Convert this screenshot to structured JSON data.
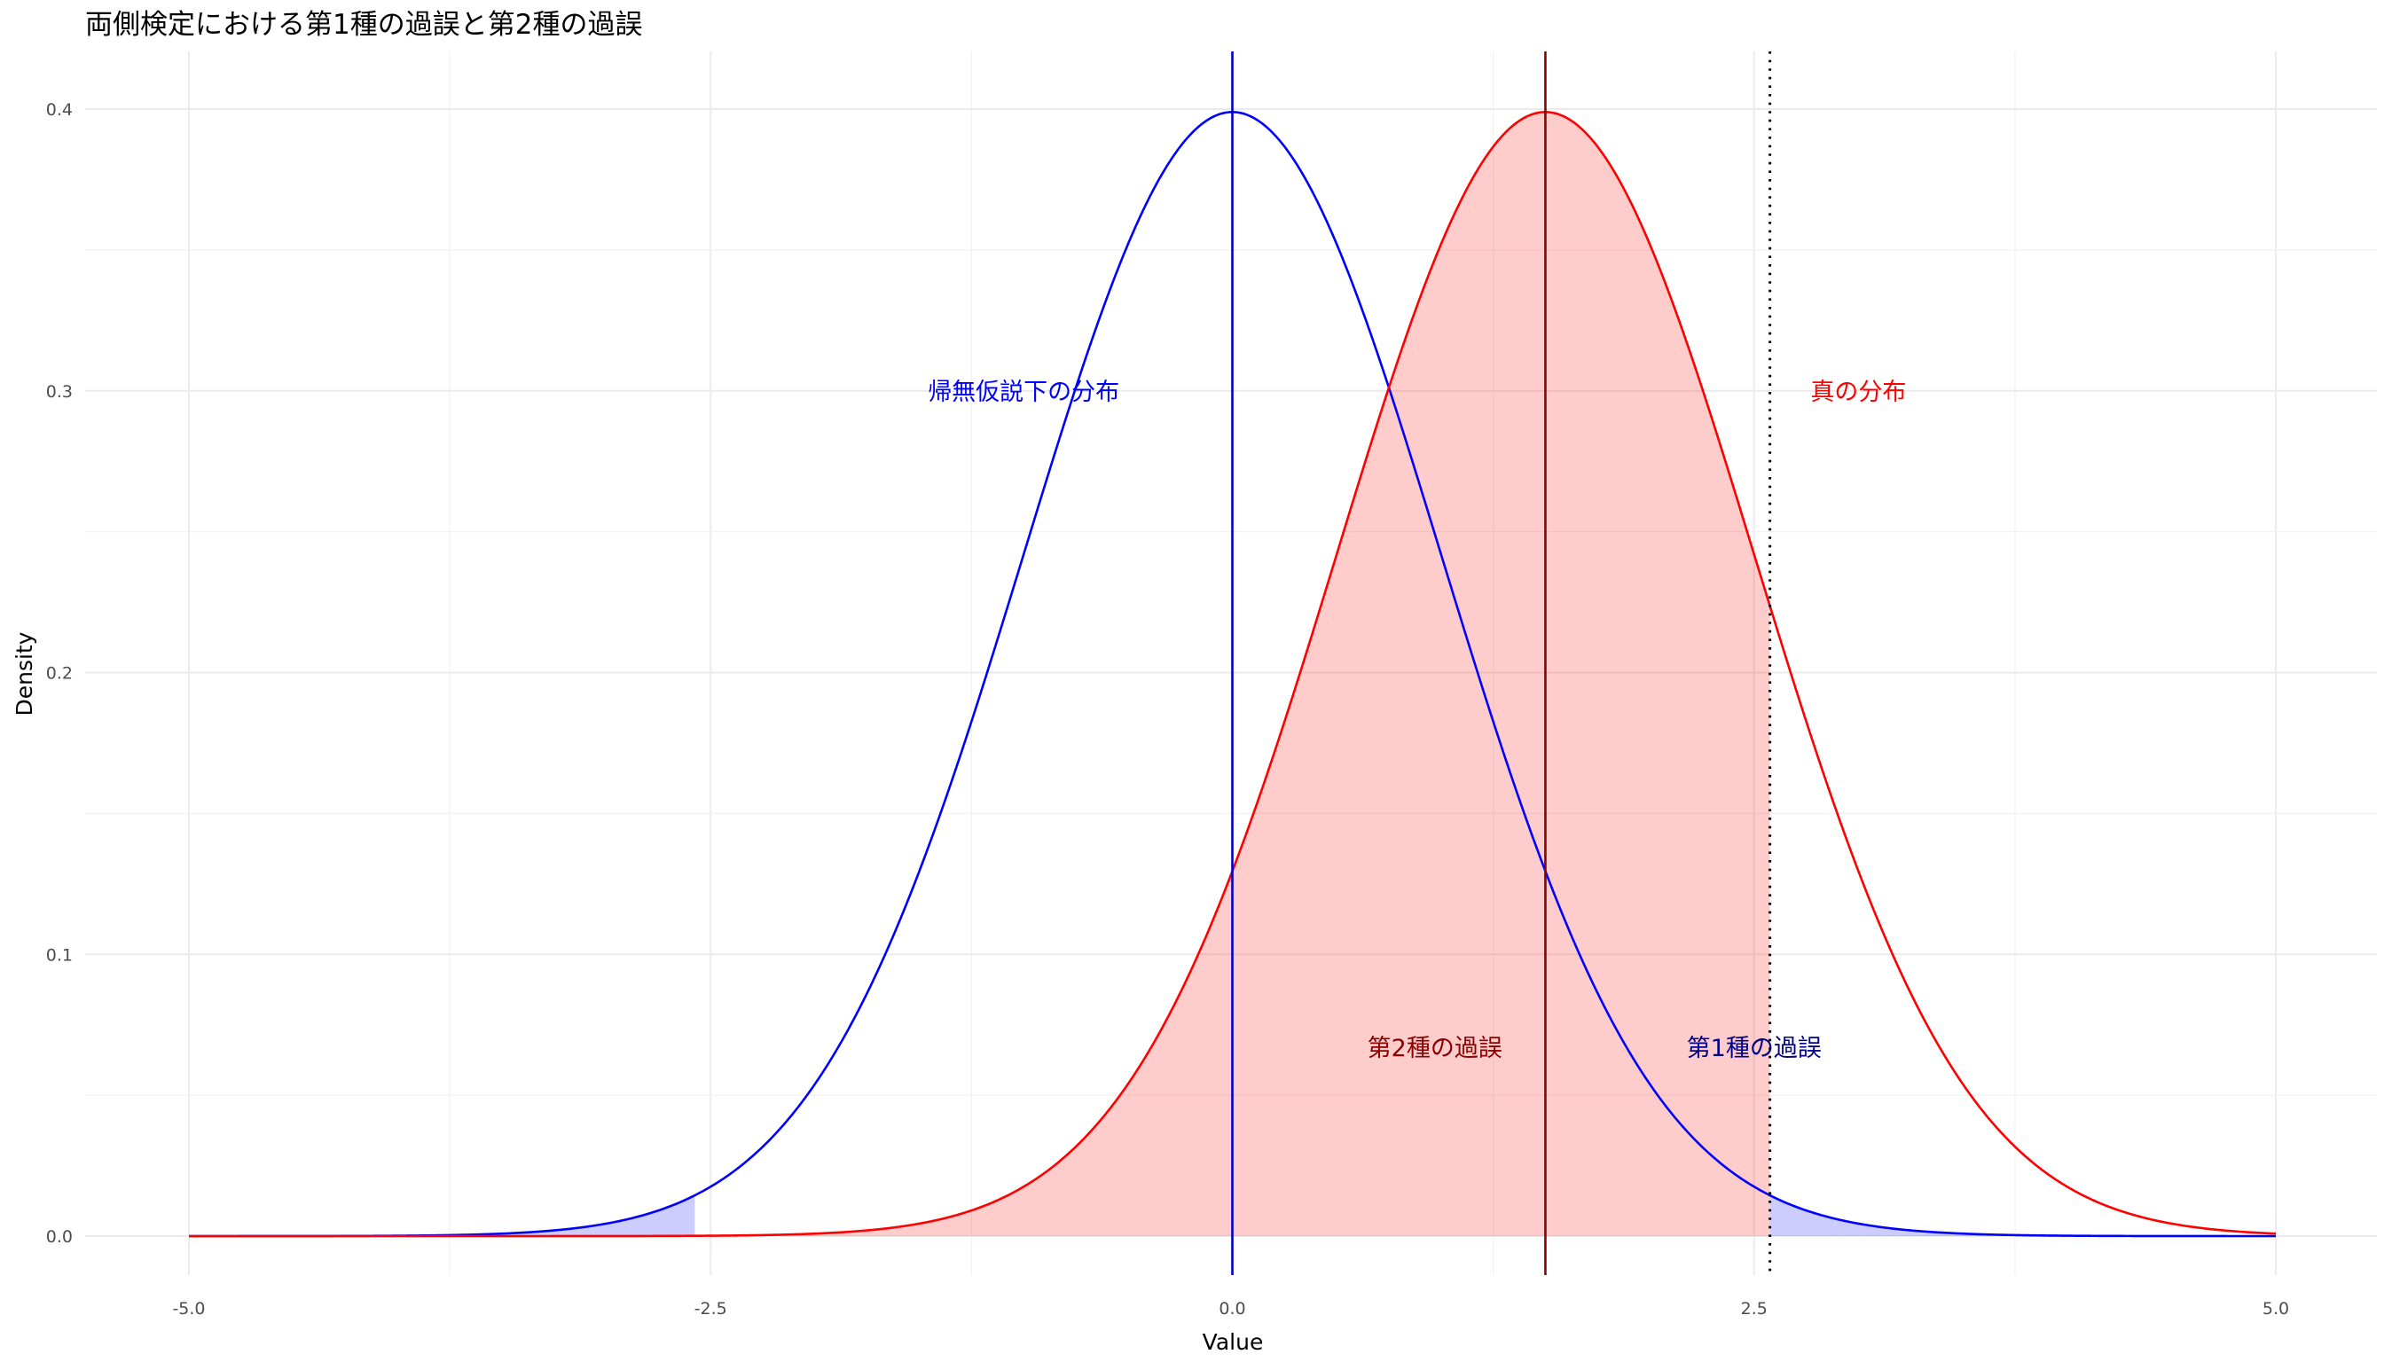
{
  "chart_data": {
    "type": "line",
    "title": "両側検定における第1種の過誤と第2種の過誤",
    "xlabel": "Value",
    "ylabel": "Density",
    "xlim": [
      -5,
      5
    ],
    "ylim": [
      0,
      0.4
    ],
    "x_ticks": [
      -5.0,
      -2.5,
      0.0,
      2.5,
      5.0
    ],
    "x_tick_labels": [
      "-5.0",
      "-2.5",
      "0.0",
      "2.5",
      "5.0"
    ],
    "y_ticks": [
      0.0,
      0.1,
      0.2,
      0.3,
      0.4
    ],
    "y_tick_labels": [
      "0.0",
      "0.1",
      "0.2",
      "0.3",
      "0.4"
    ],
    "grid": true,
    "series": [
      {
        "distribution": "normal",
        "mean": 0,
        "sd": 1,
        "color": "#0000ff"
      },
      {
        "distribution": "normal",
        "mean": 1.5,
        "sd": 1,
        "color": "#ff0000"
      }
    ],
    "critical_values": [
      -2.576,
      2.576
    ],
    "vertical_lines": [
      {
        "x": 0,
        "color": "#0000cd",
        "style": "solid"
      },
      {
        "x": 1.5,
        "color": "#8b0000",
        "style": "solid"
      },
      {
        "x": 2.576,
        "color": "#000000",
        "style": "dotted"
      }
    ],
    "shaded_regions": [
      {
        "series_index": 0,
        "from": -5,
        "to": -2.576,
        "color": "#0000ff",
        "opacity": 0.2
      },
      {
        "series_index": 0,
        "from": 2.576,
        "to": 5,
        "color": "#0000ff",
        "opacity": 0.2
      },
      {
        "series_index": 1,
        "from": -5,
        "to": 2.576,
        "color": "#ff0000",
        "opacity": 0.2
      }
    ],
    "annotations": [
      {
        "text": "帰無仮説下の分布",
        "x": -1.0,
        "y": 0.3,
        "color": "#0000ff"
      },
      {
        "text": "真の分布",
        "x": 3.0,
        "y": 0.3,
        "color": "#ff0000"
      },
      {
        "text": "第2種の過誤",
        "x": 0.97,
        "y": 0.067,
        "color": "#8b0000"
      },
      {
        "text": "第1種の過誤",
        "x": 2.5,
        "y": 0.067,
        "color": "#00008b"
      }
    ]
  }
}
